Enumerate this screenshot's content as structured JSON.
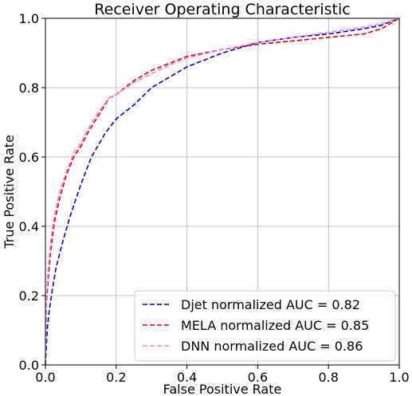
{
  "chart_data": {
    "type": "line",
    "title": "Receiver Operating Characteristic",
    "xlabel": "False Positive Rate",
    "ylabel": "True Positive Rate",
    "xlim": [
      0.0,
      1.0
    ],
    "ylim": [
      0.0,
      1.0
    ],
    "x_ticks": [
      "0.0",
      "0.2",
      "0.4",
      "0.6",
      "0.8",
      "1.0"
    ],
    "y_ticks": [
      "0.0",
      "0.2",
      "0.4",
      "0.6",
      "0.8",
      "1.0"
    ],
    "grid": true,
    "legend_position": "bottom-right",
    "series": [
      {
        "name": "Djet normalized AUC = 0.82",
        "color": "#0000cc",
        "style": "dashed",
        "x": [
          0,
          0.005,
          0.01,
          0.02,
          0.03,
          0.05,
          0.07,
          0.1,
          0.13,
          0.17,
          0.2,
          0.25,
          0.3,
          0.35,
          0.4,
          0.45,
          0.5,
          0.55,
          0.6,
          0.7,
          0.8,
          0.9,
          0.95,
          1.0
        ],
        "y": [
          0,
          0.1,
          0.15,
          0.22,
          0.28,
          0.36,
          0.43,
          0.52,
          0.6,
          0.67,
          0.71,
          0.75,
          0.8,
          0.83,
          0.86,
          0.88,
          0.9,
          0.915,
          0.93,
          0.945,
          0.955,
          0.97,
          0.98,
          1.0
        ]
      },
      {
        "name": "MELA normalized AUC = 0.85",
        "color": "#dd0000",
        "style": "dashed",
        "x": [
          0,
          0.003,
          0.008,
          0.015,
          0.025,
          0.04,
          0.06,
          0.08,
          0.1,
          0.12,
          0.15,
          0.18,
          0.2,
          0.25,
          0.3,
          0.35,
          0.4,
          0.5,
          0.6,
          0.7,
          0.8,
          0.9,
          0.95,
          1.0
        ],
        "y": [
          0,
          0.18,
          0.25,
          0.33,
          0.41,
          0.48,
          0.55,
          0.6,
          0.63,
          0.67,
          0.72,
          0.77,
          0.78,
          0.82,
          0.85,
          0.87,
          0.89,
          0.91,
          0.925,
          0.935,
          0.945,
          0.955,
          0.97,
          1.0
        ]
      },
      {
        "name": "DNN normalized AUC = 0.86",
        "color": "#ee82ee",
        "style": "dashed",
        "x": [
          0,
          0.003,
          0.008,
          0.015,
          0.025,
          0.04,
          0.06,
          0.08,
          0.1,
          0.12,
          0.15,
          0.18,
          0.2,
          0.25,
          0.3,
          0.35,
          0.4,
          0.5,
          0.6,
          0.7,
          0.8,
          0.9,
          0.95,
          1.0
        ],
        "y": [
          0,
          0.2,
          0.28,
          0.36,
          0.43,
          0.5,
          0.56,
          0.61,
          0.64,
          0.68,
          0.73,
          0.77,
          0.78,
          0.815,
          0.84,
          0.865,
          0.885,
          0.91,
          0.93,
          0.945,
          0.96,
          0.975,
          0.985,
          1.0
        ]
      }
    ]
  }
}
